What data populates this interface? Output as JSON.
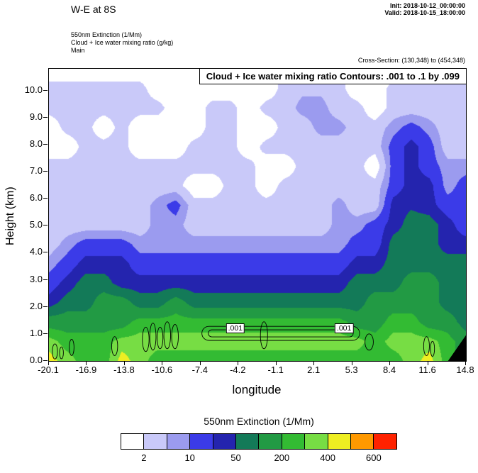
{
  "header": {
    "title": "W-E at 8S",
    "init_label": "Init: 2018-10-12_00:00:00",
    "valid_label": "Valid: 2018-10-15_18:00:00",
    "product_lines": [
      "550nm Extinction  (1/Mm)",
      "Cloud + Ice water mixing ratio  (g/kg)",
      "Main"
    ],
    "cross_section": "Cross-Section: (130,348) to (454,348)"
  },
  "plot": {
    "contour_box_title": "Cloud + Ice water mixing ratio Contours: .001 to .1 by .099",
    "xlabel": "longitude",
    "ylabel": "Height (km)",
    "x_tick_labels": [
      "-20.1",
      "-16.9",
      "-13.8",
      "-10.6",
      "-7.4",
      "-4.2",
      "-1.1",
      "2.1",
      "5.3",
      "8.4",
      "11.6",
      "14.8"
    ],
    "y_tick_labels": [
      "0.0",
      "1.0",
      "2.0",
      "3.0",
      "4.0",
      "5.0",
      "6.0",
      "7.0",
      "8.0",
      "9.0",
      "10.0"
    ],
    "contour_labels": [
      {
        "text": ".001",
        "lon": -4.5,
        "km": 1.2
      },
      {
        "text": ".001",
        "lon": 4.6,
        "km": 1.2
      }
    ]
  },
  "legend": {
    "title": "550nm Extinction  (1/Mm)",
    "labels": [
      "2",
      "10",
      "50",
      "200",
      "400",
      "600"
    ],
    "label_boundary_index": [
      1,
      3,
      5,
      7,
      9,
      11
    ]
  },
  "chart_data": {
    "type": "heatmap",
    "title": "550nm Extinction (1/Mm) W-E cross-section at 8S with Cloud + Ice water mixing ratio contours (.001 to .1 by .099)",
    "xlabel": "longitude",
    "ylabel": "Height (km)",
    "x_range": [
      -20.1,
      14.8
    ],
    "y_range_km": [
      0,
      10.8
    ],
    "levels": [
      2,
      5,
      10,
      25,
      50,
      100,
      200,
      300,
      400,
      500,
      600
    ],
    "colors": [
      "#ffffff",
      "#c9c9f9",
      "#9b9bef",
      "#3b3be8",
      "#2424ae",
      "#137a58",
      "#229a44",
      "#33bb33",
      "#77dd44",
      "#eeee22",
      "#ff9900",
      "#ff2200"
    ],
    "grid": {
      "lons": [
        -20.1,
        -18.58,
        -17.07,
        -15.55,
        -14.03,
        -12.51,
        -11.0,
        -9.48,
        -7.96,
        -6.44,
        -4.93,
        -3.41,
        -1.89,
        -0.37,
        1.14,
        2.66,
        4.18,
        5.7,
        7.21,
        8.73,
        10.25,
        11.77,
        13.28,
        14.8
      ],
      "heights_km": [
        10.8,
        10.08,
        9.36,
        8.64,
        7.92,
        7.2,
        6.48,
        5.76,
        5.04,
        4.32,
        3.6,
        2.88,
        2.16,
        1.44,
        0.72,
        0
      ],
      "values": [
        [
          1,
          1,
          1,
          1,
          1,
          1,
          1,
          1,
          1,
          1,
          1,
          1,
          1,
          3,
          3,
          3,
          3,
          1,
          1,
          1,
          1,
          3,
          3,
          3
        ],
        [
          3,
          3,
          3,
          3,
          3,
          3,
          1,
          1,
          1,
          1,
          1,
          1,
          1,
          3,
          4,
          4,
          3,
          1,
          1,
          3,
          3,
          3,
          3,
          3
        ],
        [
          3,
          3,
          3,
          3,
          3,
          3,
          3,
          1,
          1,
          3,
          3,
          1,
          3,
          3,
          7,
          7,
          3,
          3,
          1,
          3,
          3,
          3,
          3,
          3
        ],
        [
          1,
          3,
          3,
          1,
          3,
          1,
          1,
          1,
          1,
          3,
          3,
          1,
          1,
          3,
          3,
          7,
          7,
          3,
          3,
          7,
          15,
          7,
          3,
          3
        ],
        [
          1,
          1,
          3,
          3,
          3,
          1,
          1,
          1,
          3,
          3,
          3,
          1,
          3,
          3,
          3,
          3,
          3,
          3,
          3,
          15,
          35,
          15,
          3,
          3
        ],
        [
          3,
          3,
          3,
          3,
          3,
          3,
          3,
          3,
          3,
          3,
          3,
          3,
          1,
          1,
          3,
          3,
          3,
          3,
          1,
          15,
          35,
          15,
          7,
          7
        ],
        [
          3,
          3,
          3,
          3,
          3,
          3,
          3,
          3,
          1,
          1,
          3,
          3,
          1,
          3,
          3,
          3,
          3,
          3,
          3,
          15,
          35,
          35,
          7,
          15
        ],
        [
          3,
          3,
          3,
          3,
          3,
          3,
          7,
          15,
          3,
          3,
          3,
          3,
          3,
          3,
          3,
          3,
          7,
          3,
          3,
          35,
          45,
          35,
          15,
          15
        ],
        [
          3,
          3,
          3,
          3,
          3,
          3,
          7,
          7,
          3,
          3,
          3,
          3,
          3,
          3,
          3,
          3,
          7,
          7,
          15,
          35,
          70,
          70,
          35,
          15
        ],
        [
          3,
          7,
          15,
          15,
          15,
          7,
          7,
          7,
          7,
          7,
          7,
          7,
          7,
          7,
          7,
          7,
          7,
          15,
          15,
          70,
          70,
          70,
          35,
          35
        ],
        [
          7,
          15,
          35,
          35,
          35,
          15,
          15,
          15,
          15,
          15,
          15,
          15,
          15,
          15,
          15,
          15,
          15,
          35,
          35,
          70,
          70,
          70,
          70,
          70
        ],
        [
          15,
          35,
          70,
          70,
          35,
          35,
          35,
          35,
          35,
          35,
          35,
          35,
          35,
          35,
          35,
          35,
          35,
          70,
          70,
          70,
          150,
          150,
          70,
          70
        ],
        [
          35,
          70,
          70,
          150,
          150,
          70,
          70,
          150,
          70,
          70,
          70,
          70,
          70,
          70,
          70,
          70,
          70,
          70,
          150,
          150,
          150,
          150,
          70,
          70
        ],
        [
          150,
          150,
          150,
          150,
          150,
          250,
          250,
          250,
          250,
          250,
          250,
          250,
          250,
          250,
          250,
          250,
          250,
          150,
          150,
          250,
          250,
          150,
          150,
          70
        ],
        [
          350,
          250,
          250,
          250,
          350,
          350,
          350,
          350,
          350,
          350,
          350,
          350,
          350,
          350,
          350,
          350,
          350,
          350,
          250,
          350,
          350,
          350,
          250,
          150
        ],
        [
          450,
          350,
          250,
          250,
          450,
          350,
          250,
          250,
          250,
          250,
          250,
          250,
          250,
          250,
          250,
          250,
          250,
          250,
          250,
          250,
          350,
          450,
          250,
          150
        ]
      ]
    },
    "cloud_contours": {
      "levels": [
        0.001,
        0.1
      ],
      "long_blob": {
        "lon_min": -7.3,
        "lon_max": 5.9,
        "km_center": 1.02,
        "km_half_outer": 0.26,
        "km_half_inner": 0.13
      },
      "small_loops": [
        [
          -19.6,
          0.35,
          0.22,
          0.28
        ],
        [
          -19.05,
          0.3,
          0.16,
          0.22
        ],
        [
          -18.2,
          0.5,
          0.2,
          0.3
        ],
        [
          -14.6,
          0.55,
          0.25,
          0.35
        ],
        [
          -12.0,
          0.8,
          0.28,
          0.45
        ],
        [
          -11.4,
          0.9,
          0.26,
          0.5
        ],
        [
          -10.8,
          0.85,
          0.24,
          0.4
        ],
        [
          -10.2,
          0.95,
          0.28,
          0.5
        ],
        [
          -9.55,
          0.9,
          0.28,
          0.45
        ],
        [
          -2.1,
          0.95,
          0.3,
          0.5
        ],
        [
          6.7,
          0.7,
          0.35,
          0.3
        ],
        [
          11.5,
          0.55,
          0.24,
          0.35
        ],
        [
          12.0,
          0.45,
          0.17,
          0.28
        ]
      ]
    },
    "terrain_polygon": [
      [
        13.3,
        0
      ],
      [
        14.8,
        0
      ],
      [
        14.8,
        0.95
      ]
    ]
  }
}
